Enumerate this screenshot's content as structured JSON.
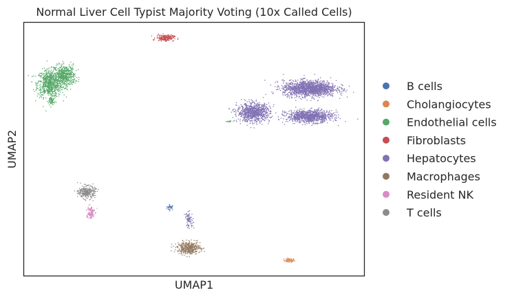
{
  "chart_data": {
    "type": "scatter",
    "title": "Normal Liver Cell Typist Majority Voting (10x Called Cells)",
    "xlabel": "UMAP1",
    "ylabel": "UMAP2",
    "xlim": [
      0,
      100
    ],
    "ylim": [
      0,
      100
    ],
    "grid": false,
    "legend_position": "right",
    "series": [
      {
        "name": "B cells",
        "color": "#4c72b0",
        "clusters": [
          {
            "x": 43.0,
            "y": 27.0,
            "sx": 0.9,
            "sy": 0.9,
            "n": 30
          }
        ]
      },
      {
        "name": "Cholangiocytes",
        "color": "#dd8452",
        "clusters": [
          {
            "x": 78.0,
            "y": 6.0,
            "sx": 1.3,
            "sy": 0.7,
            "n": 60
          }
        ]
      },
      {
        "name": "Endothelial cells",
        "color": "#55a868",
        "clusters": [
          {
            "x": 7.5,
            "y": 76.0,
            "sx": 3.0,
            "sy": 4.5,
            "n": 700
          },
          {
            "x": 12.0,
            "y": 79.0,
            "sx": 2.5,
            "sy": 3.5,
            "n": 500
          },
          {
            "x": 8.0,
            "y": 69.0,
            "sx": 0.8,
            "sy": 1.8,
            "n": 60
          },
          {
            "x": 60.5,
            "y": 61.0,
            "sx": 0.8,
            "sy": 0.3,
            "n": 15
          }
        ]
      },
      {
        "name": "Fibroblasts",
        "color": "#c44e52",
        "clusters": [
          {
            "x": 41.5,
            "y": 94.0,
            "sx": 2.2,
            "sy": 1.0,
            "n": 180
          }
        ]
      },
      {
        "name": "Hepatocytes",
        "color": "#8172b3",
        "clusters": [
          {
            "x": 84.0,
            "y": 74.0,
            "sx": 6.5,
            "sy": 2.6,
            "n": 1500
          },
          {
            "x": 84.0,
            "y": 63.0,
            "sx": 5.5,
            "sy": 2.0,
            "n": 1000
          },
          {
            "x": 67.5,
            "y": 64.5,
            "sx": 4.0,
            "sy": 3.0,
            "n": 900
          },
          {
            "x": 48.5,
            "y": 22.0,
            "sx": 1.0,
            "sy": 2.5,
            "n": 80
          }
        ]
      },
      {
        "name": "Macrophages",
        "color": "#937860",
        "clusters": [
          {
            "x": 48.5,
            "y": 11.0,
            "sx": 2.8,
            "sy": 2.0,
            "n": 420
          }
        ]
      },
      {
        "name": "Resident NK",
        "color": "#da8bc3",
        "clusters": [
          {
            "x": 19.5,
            "y": 25.0,
            "sx": 1.0,
            "sy": 2.2,
            "n": 120
          }
        ]
      },
      {
        "name": "T cells",
        "color": "#8c8c8c",
        "clusters": [
          {
            "x": 18.5,
            "y": 33.0,
            "sx": 2.0,
            "sy": 2.0,
            "n": 300
          }
        ]
      }
    ]
  }
}
